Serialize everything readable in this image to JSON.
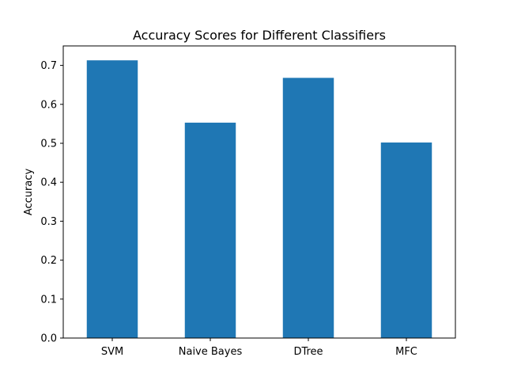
{
  "chart_data": {
    "type": "bar",
    "title": "Accuracy Scores for Different Classifiers",
    "xlabel": "",
    "ylabel": "Accuracy",
    "categories": [
      "SVM",
      "Naive Bayes",
      "DTree",
      "MFC"
    ],
    "values": [
      0.713,
      0.553,
      0.668,
      0.502
    ],
    "ylim": [
      0,
      0.75
    ],
    "yticks": [
      0.0,
      0.1,
      0.2,
      0.3,
      0.4,
      0.5,
      0.6,
      0.7
    ],
    "ytick_labels": [
      "0.0",
      "0.1",
      "0.2",
      "0.3",
      "0.4",
      "0.5",
      "0.6",
      "0.7"
    ],
    "grid": false,
    "bar_color": "#1f77b4"
  }
}
